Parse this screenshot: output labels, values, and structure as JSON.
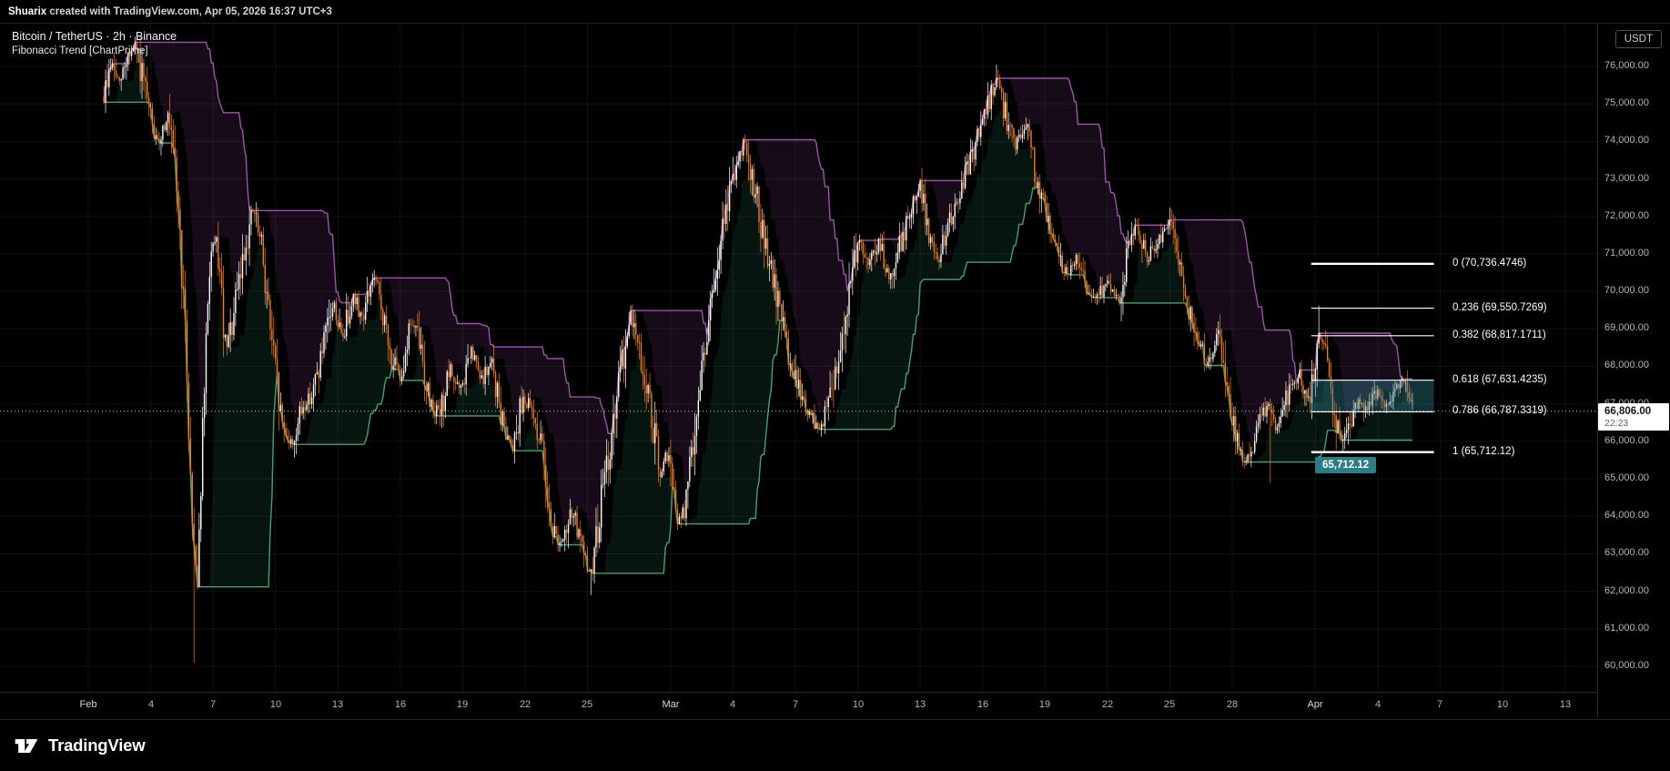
{
  "attribution": {
    "user": "Shuarix",
    "rest": " created with TradingView.com, Apr 05, 2026 16:37 UTC+3"
  },
  "legend": {
    "symbol_line": "Bitcoin / TetherUS · 2h · Binance",
    "indicator_line": "Fibonacci Trend [ChartPrime]"
  },
  "axis": {
    "currency_label": "USDT"
  },
  "footer": {
    "brand": "TradingView"
  },
  "colors": {
    "background": "#000000",
    "grid": "rgba(255,255,255,0.065)",
    "frame": "#242832",
    "axis_text": "#b2b5be",
    "up": "#ffffff",
    "down": "#ee7e2e",
    "band_up": "#9b54a8",
    "band_up_fill": "rgba(140,70,160,0.16)",
    "band_dn": "#4c9e6e",
    "band_dn_fill": "rgba(45,130,105,0.16)",
    "fib_line": "#ffffff",
    "fib_zone_fill": "rgba(50,135,150,0.38)",
    "badge_bg": "#2c7d85",
    "dotted_line": "#cccccc"
  },
  "chart_data": {
    "type": "candlestick",
    "symbol": "Bitcoin / TetherUS",
    "exchange": "Binance",
    "interval": "2h",
    "indicator": "Fibonacci Trend [ChartPrime]",
    "last_price": 66806.0,
    "last_price_label": "66,806.00",
    "countdown": "22:23",
    "candles_per_day": 12,
    "seed": 9,
    "end_day": 63.72,
    "ylim": [
      59320,
      77141
    ],
    "xlim_days": [
      -4.244,
      72.55
    ],
    "price_axis": {
      "min": 60000,
      "max": 76000,
      "step": 1000,
      "ticks": [
        {
          "v": 76000,
          "label": "76,000.00"
        },
        {
          "v": 75000,
          "label": "75,000.00"
        },
        {
          "v": 74000,
          "label": "74,000.00"
        },
        {
          "v": 73000,
          "label": "73,000.00"
        },
        {
          "v": 72000,
          "label": "72,000.00"
        },
        {
          "v": 71000,
          "label": "71,000.00"
        },
        {
          "v": 70000,
          "label": "70,000.00"
        },
        {
          "v": 69000,
          "label": "69,000.00"
        },
        {
          "v": 68000,
          "label": "68,000.00"
        },
        {
          "v": 67000,
          "label": "67,000.00"
        },
        {
          "v": 66000,
          "label": "66,000.00"
        },
        {
          "v": 65000,
          "label": "65,000.00"
        },
        {
          "v": 64000,
          "label": "64,000.00"
        },
        {
          "v": 63000,
          "label": "63,000.00"
        },
        {
          "v": 62000,
          "label": "62,000.00"
        },
        {
          "v": 61000,
          "label": "61,000.00"
        },
        {
          "v": 60000,
          "label": "60,000.00"
        }
      ]
    },
    "time_axis": {
      "ticks": [
        {
          "label": "Feb",
          "day": 0,
          "month": true
        },
        {
          "label": "4",
          "day": 3
        },
        {
          "label": "7",
          "day": 6
        },
        {
          "label": "10",
          "day": 9
        },
        {
          "label": "13",
          "day": 12
        },
        {
          "label": "16",
          "day": 15
        },
        {
          "label": "19",
          "day": 18
        },
        {
          "label": "22",
          "day": 21
        },
        {
          "label": "25",
          "day": 24
        },
        {
          "label": "Mar",
          "day": 28,
          "month": true
        },
        {
          "label": "4",
          "day": 31
        },
        {
          "label": "7",
          "day": 34
        },
        {
          "label": "10",
          "day": 37
        },
        {
          "label": "13",
          "day": 40
        },
        {
          "label": "16",
          "day": 43
        },
        {
          "label": "19",
          "day": 46
        },
        {
          "label": "22",
          "day": 49
        },
        {
          "label": "25",
          "day": 52
        },
        {
          "label": "28",
          "day": 55
        },
        {
          "label": "Apr",
          "day": 59,
          "month": true
        },
        {
          "label": "4",
          "day": 62
        },
        {
          "label": "7",
          "day": 65
        },
        {
          "label": "10",
          "day": 68
        },
        {
          "label": "13",
          "day": 71
        }
      ]
    },
    "fib": {
      "x_start_day": 58.8,
      "x_end_day": 64.7,
      "label_day": 65.6,
      "levels": [
        {
          "label": "0 (70,736.4746)",
          "value": 70736.4746
        },
        {
          "label": "0.236 (69,550.7269)",
          "value": 69550.7269
        },
        {
          "label": "0.382 (68,817.1711)",
          "value": 68817.1711
        },
        {
          "label": "0.618 (67,631.4235)",
          "value": 67631.4235
        },
        {
          "label": "0.786 (66,787.3319)",
          "value": 66787.3319
        },
        {
          "label": "1 (65,712.12)",
          "value": 65712.12
        }
      ],
      "zone": {
        "from_label": "0.618",
        "to_label": "0.786"
      },
      "low_badge": "65,712.12",
      "badge_day": 59.0
    },
    "anchors": [
      [
        0.75,
        75200
      ],
      [
        1.1,
        76100
      ],
      [
        1.5,
        75500
      ],
      [
        1.9,
        76300
      ],
      [
        2.3,
        76500
      ],
      [
        2.8,
        75100
      ],
      [
        3.3,
        73900
      ],
      [
        3.8,
        74700
      ],
      [
        4.3,
        72600
      ],
      [
        4.7,
        68500
      ],
      [
        5.0,
        63800
      ],
      [
        5.25,
        62300
      ],
      [
        5.5,
        66200
      ],
      [
        5.85,
        70900
      ],
      [
        6.2,
        71300
      ],
      [
        6.6,
        68300
      ],
      [
        7.0,
        69300
      ],
      [
        7.5,
        71100
      ],
      [
        7.95,
        72200
      ],
      [
        8.4,
        70900
      ],
      [
        8.9,
        68300
      ],
      [
        9.3,
        66500
      ],
      [
        9.8,
        65900
      ],
      [
        10.3,
        66900
      ],
      [
        10.8,
        67300
      ],
      [
        11.3,
        68500
      ],
      [
        11.8,
        69700
      ],
      [
        12.2,
        68700
      ],
      [
        12.7,
        69900
      ],
      [
        13.2,
        69300
      ],
      [
        13.7,
        70400
      ],
      [
        14.1,
        69600
      ],
      [
        14.5,
        68300
      ],
      [
        15.0,
        67700
      ],
      [
        15.5,
        69200
      ],
      [
        15.9,
        68700
      ],
      [
        16.4,
        67100
      ],
      [
        16.9,
        66700
      ],
      [
        17.4,
        67900
      ],
      [
        17.9,
        67300
      ],
      [
        18.4,
        68400
      ],
      [
        18.9,
        67600
      ],
      [
        19.4,
        68100
      ],
      [
        19.9,
        66500
      ],
      [
        20.4,
        65900
      ],
      [
        20.9,
        67200
      ],
      [
        21.4,
        66700
      ],
      [
        21.9,
        65600
      ],
      [
        22.3,
        63700
      ],
      [
        22.8,
        63200
      ],
      [
        23.3,
        64200
      ],
      [
        23.8,
        62900
      ],
      [
        24.2,
        62450
      ],
      [
        24.7,
        64600
      ],
      [
        25.2,
        66200
      ],
      [
        25.7,
        68200
      ],
      [
        26.1,
        69400
      ],
      [
        26.6,
        68100
      ],
      [
        27.1,
        66600
      ],
      [
        27.5,
        65000
      ],
      [
        27.9,
        65700
      ],
      [
        28.3,
        63800
      ],
      [
        28.7,
        64200
      ],
      [
        29.2,
        66600
      ],
      [
        29.7,
        68800
      ],
      [
        30.2,
        70400
      ],
      [
        30.7,
        72300
      ],
      [
        31.2,
        73500
      ],
      [
        31.6,
        74000
      ],
      [
        32.1,
        72600
      ],
      [
        32.6,
        71000
      ],
      [
        33.1,
        69900
      ],
      [
        33.6,
        68500
      ],
      [
        34.1,
        67500
      ],
      [
        34.6,
        66800
      ],
      [
        35.1,
        66300
      ],
      [
        35.6,
        67000
      ],
      [
        36.1,
        68400
      ],
      [
        36.6,
        70200
      ],
      [
        37.1,
        71500
      ],
      [
        37.5,
        70700
      ],
      [
        38.0,
        71300
      ],
      [
        38.5,
        70400
      ],
      [
        39.0,
        71200
      ],
      [
        39.5,
        72000
      ],
      [
        40.0,
        72900
      ],
      [
        40.4,
        71500
      ],
      [
        40.9,
        70900
      ],
      [
        41.4,
        71800
      ],
      [
        41.9,
        72600
      ],
      [
        42.4,
        73500
      ],
      [
        42.9,
        74300
      ],
      [
        43.3,
        75100
      ],
      [
        43.7,
        75700
      ],
      [
        44.1,
        74700
      ],
      [
        44.6,
        73900
      ],
      [
        45.1,
        74400
      ],
      [
        45.5,
        73200
      ],
      [
        46.0,
        72100
      ],
      [
        46.5,
        71300
      ],
      [
        47.0,
        70500
      ],
      [
        47.5,
        70900
      ],
      [
        48.0,
        70100
      ],
      [
        48.5,
        69800
      ],
      [
        49.0,
        70300
      ],
      [
        49.5,
        69700
      ],
      [
        50.0,
        71000
      ],
      [
        50.4,
        71800
      ],
      [
        50.9,
        70900
      ],
      [
        51.4,
        71300
      ],
      [
        51.9,
        71900
      ],
      [
        52.3,
        71100
      ],
      [
        52.8,
        69800
      ],
      [
        53.3,
        68700
      ],
      [
        53.8,
        68100
      ],
      [
        54.3,
        68800
      ],
      [
        54.8,
        67000
      ],
      [
        55.3,
        65800
      ],
      [
        55.7,
        65400
      ],
      [
        56.2,
        66300
      ],
      [
        56.7,
        66900
      ],
      [
        57.2,
        66300
      ],
      [
        57.7,
        67300
      ],
      [
        58.2,
        67800
      ],
      [
        58.7,
        67100
      ],
      [
        59.2,
        68800
      ],
      [
        59.6,
        68100
      ],
      [
        60.0,
        66600
      ],
      [
        60.35,
        65950
      ],
      [
        60.7,
        66600
      ],
      [
        61.1,
        67100
      ],
      [
        61.5,
        66800
      ],
      [
        62.0,
        67300
      ],
      [
        62.4,
        67000
      ],
      [
        62.9,
        67400
      ],
      [
        63.3,
        67600
      ],
      [
        63.7,
        66806
      ]
    ],
    "wicks": [
      {
        "day": 2.3,
        "high": 76900
      },
      {
        "day": 5.05,
        "low": 60100
      },
      {
        "day": 24.2,
        "low": 61900
      },
      {
        "day": 31.6,
        "high": 74150
      },
      {
        "day": 43.7,
        "high": 76050
      },
      {
        "day": 56.85,
        "low": 64900
      },
      {
        "day": 59.2,
        "high": 69620
      },
      {
        "day": 60.35,
        "low": 65712.12
      }
    ]
  }
}
